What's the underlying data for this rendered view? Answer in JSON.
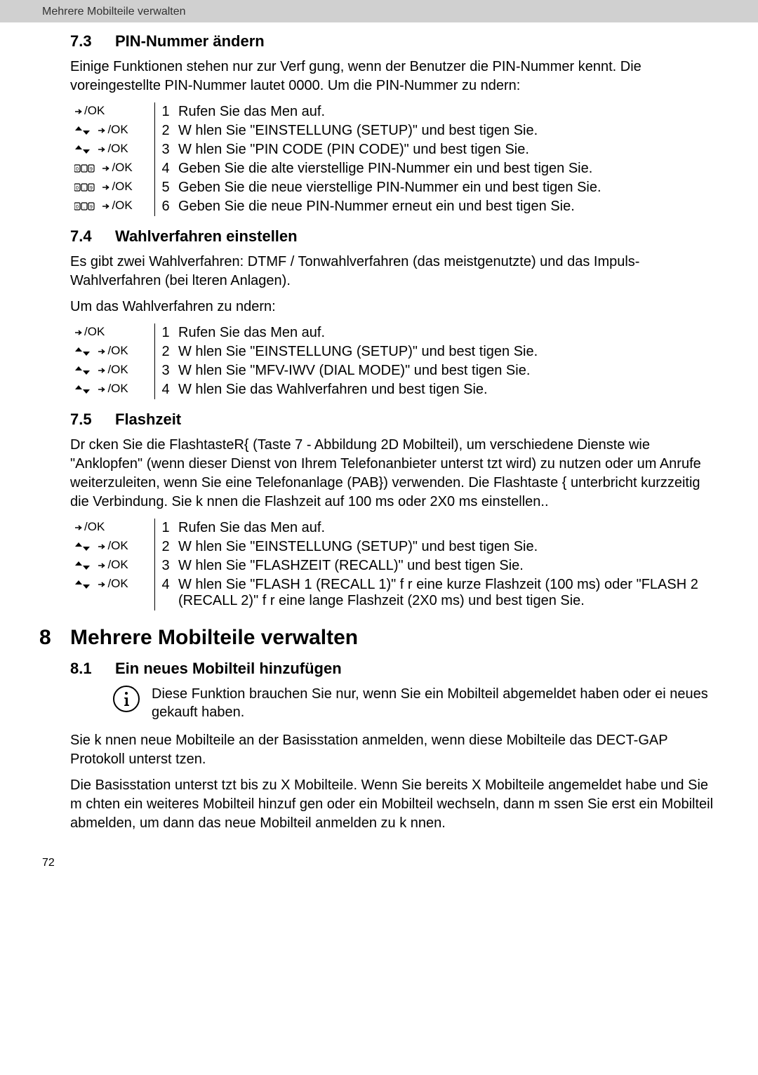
{
  "header": {
    "text": "Mehrere Mobilteile verwalten"
  },
  "icons": {
    "ok_label": "/OK"
  },
  "section73": {
    "num": "7.3",
    "title": "PIN-Nummer ändern",
    "intro": "Einige Funktionen stehen nur zur Verf gung, wenn der Benutzer die PIN-Nummer kennt. Die voreingestellte PIN-Nummer lautet 0000. Um die PIN-Nummer zu  ndern:",
    "steps": [
      {
        "icons": [
          "ok"
        ],
        "n": "1",
        "text": "Rufen Sie das Men  auf."
      },
      {
        "icons": [
          "updown",
          "ok"
        ],
        "n": "2",
        "text": "W hlen Sie \"EINSTELLUNG (SETUP)\" und best tigen Sie."
      },
      {
        "icons": [
          "updown",
          "ok"
        ],
        "n": "3",
        "text": "W hlen Sie \"PIN CODE (PIN CODE)\" und best tigen Sie."
      },
      {
        "icons": [
          "keypad",
          "ok"
        ],
        "n": "4",
        "text": "Geben Sie die alte vierstellige PIN-Nummer ein und best tigen Sie."
      },
      {
        "icons": [
          "keypad",
          "ok"
        ],
        "n": "5",
        "text": "Geben Sie die neue vierstellige PIN-Nummer ein und best tigen Sie."
      },
      {
        "icons": [
          "keypad",
          "ok"
        ],
        "n": "6",
        "text": "Geben Sie die neue PIN-Nummer erneut ein und best tigen Sie."
      }
    ]
  },
  "section74": {
    "num": "7.4",
    "title": "Wahlverfahren einstellen",
    "intro1": "Es gibt zwei Wahlverfahren: DTMF / Tonwahlverfahren (das meistgenutzte) und das Impuls-Wahlverfahren (bei  lteren Anlagen).",
    "intro2": "Um das Wahlverfahren zu  ndern:",
    "steps": [
      {
        "icons": [
          "ok"
        ],
        "n": "1",
        "text": "Rufen Sie das Men  auf."
      },
      {
        "icons": [
          "updown",
          "ok"
        ],
        "n": "2",
        "text": "W hlen Sie \"EINSTELLUNG (SETUP)\" und best tigen Sie."
      },
      {
        "icons": [
          "updown",
          "ok"
        ],
        "n": "3",
        "text": "W hlen Sie \"MFV-IWV (DIAL MODE)\" und best tigen Sie."
      },
      {
        "icons": [
          "updown",
          "ok"
        ],
        "n": "4",
        "text": "W hlen Sie das Wahlverfahren und best tigen Sie."
      }
    ]
  },
  "section75": {
    "num": "7.5",
    "title": "Flashzeit",
    "intro": "Dr cken Sie die FlashtasteR{ (Taste 7 - Abbildung 2D Mobilteil), um verschiedene Dienste wie \"Anklopfen\" (wenn dieser Dienst von Ihrem Telefonanbieter unterst tzt wird) zu nutzen oder um Anrufe weiterzuleiten, wenn Sie eine Telefonanlage (PAB}) verwenden. Die Flashtaste { unterbricht kurzzeitig die Verbindung. Sie k nnen die Flashzeit auf 100 ms oder 2X0 ms einstellen..",
    "steps": [
      {
        "icons": [
          "ok"
        ],
        "n": "1",
        "text": "Rufen Sie das Men  auf."
      },
      {
        "icons": [
          "updown",
          "ok"
        ],
        "n": "2",
        "text": "W hlen Sie \"EINSTELLUNG (SETUP)\" und best tigen Sie."
      },
      {
        "icons": [
          "updown",
          "ok"
        ],
        "n": "3",
        "text": "W hlen Sie \"FLASHZEIT (RECALL)\" und best tigen Sie."
      },
      {
        "icons": [
          "updown",
          "ok"
        ],
        "n": "4",
        "text": "W hlen Sie \"FLASH 1 (RECALL 1)\" f r eine kurze Flashzeit (100 ms) oder \"FLASH 2 (RECALL 2)\" f r eine lange Flashzeit (2X0 ms) und best tigen Sie."
      }
    ]
  },
  "section8": {
    "num": "8",
    "title": "Mehrere Mobilteile verwalten"
  },
  "section81": {
    "num": "8.1",
    "title": "Ein neues Mobilteil hinzufügen",
    "note": "Diese Funktion brauchen Sie nur, wenn Sie ein Mobilteil abgemeldet haben oder ei neues gekauft haben.",
    "para1": "Sie k nnen neue Mobilteile an der Basisstation anmelden, wenn diese Mobilteile das DECT-GAP Protokoll unterst tzen.",
    "para2": "Die Basisstation unterst tzt bis zu X Mobilteile. Wenn Sie bereits X Mobilteile angemeldet habe und Sie m chten ein weiteres Mobilteil hinzuf gen oder ein Mobilteil wechseln, dann m ssen Sie erst ein Mobilteil abmelden, um dann das neue Mobilteil anmelden zu k nnen."
  },
  "page_number": "72"
}
